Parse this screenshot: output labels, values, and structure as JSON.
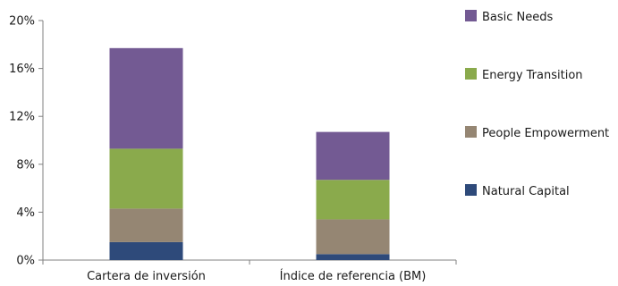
{
  "chart_data": {
    "type": "bar",
    "stacked": true,
    "categories": [
      "Cartera de inversión",
      "Índice de referencia (BM)"
    ],
    "series": [
      {
        "name": "Natural Capital",
        "color": "#2e4a7a",
        "values": [
          1.5,
          0.5
        ]
      },
      {
        "name": "People Empowerment",
        "color": "#958673",
        "values": [
          2.8,
          2.9
        ]
      },
      {
        "name": "Energy Transition",
        "color": "#8aaa4c",
        "values": [
          5.0,
          3.3
        ]
      },
      {
        "name": "Basic Needs",
        "color": "#735a93",
        "values": [
          8.4,
          4.0
        ]
      }
    ],
    "ylim": [
      0,
      20
    ],
    "yticks": [
      0,
      4,
      8,
      12,
      16,
      20
    ],
    "ytick_labels": [
      "0%",
      "4%",
      "8%",
      "12%",
      "16%",
      "20%"
    ],
    "grid": false,
    "legend": {
      "position": "right",
      "order": [
        "Basic Needs",
        "Energy Transition",
        "People Empowerment",
        "Natural Capital"
      ]
    }
  }
}
